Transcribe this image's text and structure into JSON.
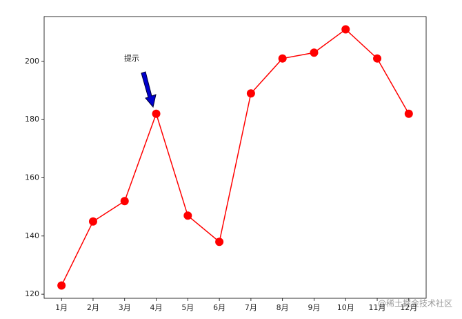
{
  "chart_data": {
    "type": "line",
    "categories": [
      "1月",
      "2月",
      "3月",
      "4月",
      "5月",
      "6月",
      "7月",
      "8月",
      "9月",
      "10月",
      "11月",
      "12月"
    ],
    "values": [
      123,
      145,
      152,
      182,
      147,
      138,
      189,
      201,
      203,
      211,
      201,
      182
    ],
    "color": "#ff0000",
    "ylim": [
      118.6,
      215.4
    ],
    "yticks": [
      120,
      140,
      160,
      180,
      200
    ],
    "annotation": "提示",
    "watermark": "@稀土掘金技术社区"
  }
}
